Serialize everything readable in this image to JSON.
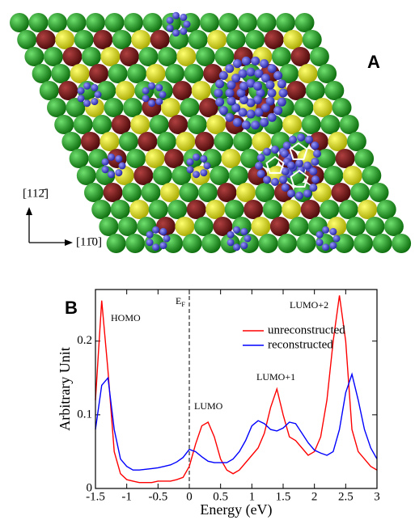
{
  "panel_a": {
    "label": "A",
    "directions": [
      "[112̄]",
      "[11̄0]"
    ]
  },
  "chart_data": {
    "type": "line",
    "panel_label": "B",
    "xlabel": "Energy (eV)",
    "ylabel": "Arbitrary Unit",
    "x": [
      -1.5,
      -1.4,
      -1.3,
      -1.2,
      -1.1,
      -1.0,
      -0.9,
      -0.8,
      -0.7,
      -0.6,
      -0.5,
      -0.4,
      -0.3,
      -0.2,
      -0.1,
      0,
      0.1,
      0.2,
      0.3,
      0.4,
      0.5,
      0.6,
      0.7,
      0.8,
      0.9,
      1.0,
      1.1,
      1.2,
      1.3,
      1.4,
      1.5,
      1.6,
      1.7,
      1.8,
      1.9,
      2.0,
      2.1,
      2.2,
      2.3,
      2.4,
      2.5,
      2.6,
      2.7,
      2.8,
      2.9,
      3.0
    ],
    "series": [
      {
        "name": "unreconstructed",
        "color": "#ff0000",
        "values": [
          0.12,
          0.255,
          0.16,
          0.05,
          0.02,
          0.012,
          0.01,
          0.008,
          0.008,
          0.008,
          0.01,
          0.01,
          0.01,
          0.012,
          0.015,
          0.03,
          0.06,
          0.085,
          0.09,
          0.07,
          0.04,
          0.025,
          0.02,
          0.025,
          0.035,
          0.045,
          0.055,
          0.075,
          0.11,
          0.135,
          0.1,
          0.07,
          0.065,
          0.055,
          0.045,
          0.05,
          0.07,
          0.12,
          0.2,
          0.262,
          0.2,
          0.08,
          0.05,
          0.04,
          0.03,
          0.025
        ]
      },
      {
        "name": "reconstructed",
        "color": "#0000ff",
        "values": [
          0.08,
          0.14,
          0.15,
          0.08,
          0.04,
          0.03,
          0.025,
          0.025,
          0.026,
          0.027,
          0.028,
          0.03,
          0.032,
          0.036,
          0.042,
          0.053,
          0.05,
          0.043,
          0.037,
          0.035,
          0.035,
          0.035,
          0.04,
          0.05,
          0.065,
          0.085,
          0.092,
          0.088,
          0.08,
          0.078,
          0.082,
          0.09,
          0.088,
          0.075,
          0.062,
          0.052,
          0.048,
          0.045,
          0.05,
          0.08,
          0.13,
          0.155,
          0.12,
          0.08,
          0.055,
          0.04
        ]
      }
    ],
    "xlim": [
      -1.5,
      3
    ],
    "ylim": [
      0,
      0.27
    ],
    "xticks": [
      -1.5,
      -1,
      -0.5,
      0,
      0.5,
      1,
      1.5,
      2,
      2.5,
      3
    ],
    "yticks": [
      0,
      0.1,
      0.2
    ],
    "vline": 0,
    "annotations": [
      {
        "text": "HOMO"
      },
      {
        "text": "E",
        "subscript": "F"
      },
      {
        "text": "LUMO"
      },
      {
        "text": "LUMO+1"
      },
      {
        "text": "LUMO+2"
      }
    ]
  }
}
